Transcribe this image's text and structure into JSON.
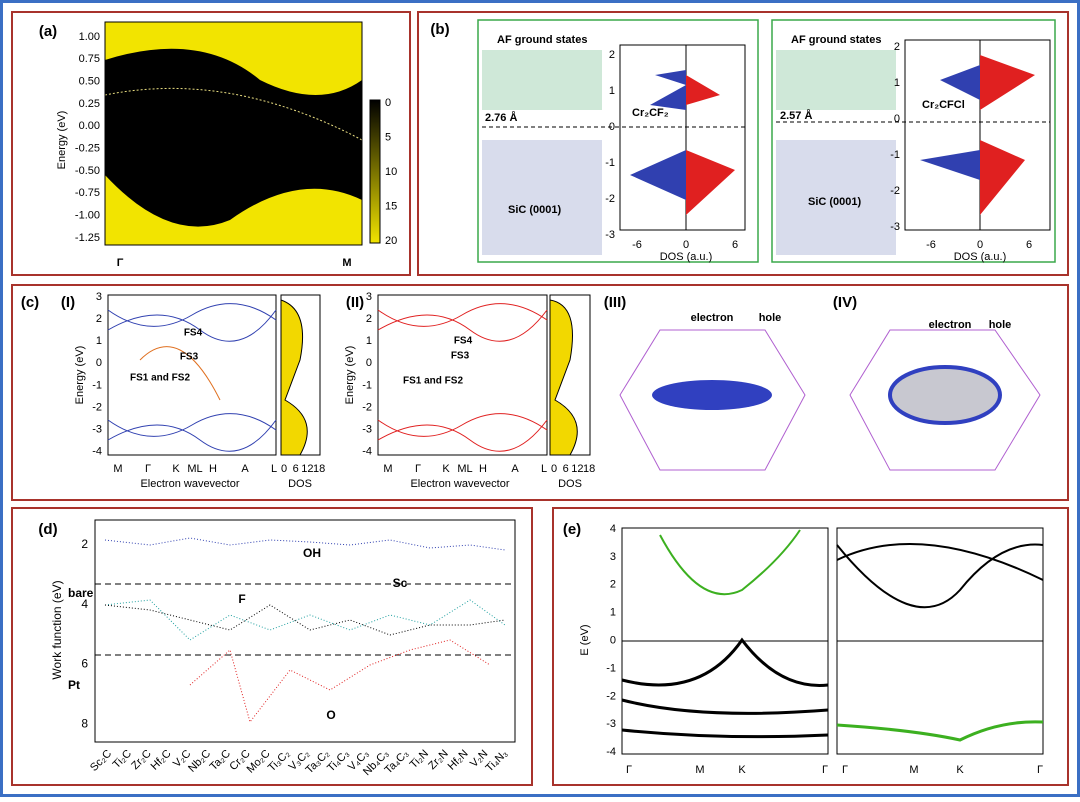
{
  "panels": {
    "a": {
      "label": "(a)",
      "y_axis_label": "Energy (eV)",
      "yticks": [
        "1.00",
        "0.75",
        "0.50",
        "0.25",
        "0.00",
        "-0.25",
        "-0.50",
        "-0.75",
        "-1.00",
        "-1.25"
      ],
      "colorbar_ticks": [
        "0",
        "5",
        "10",
        "15",
        "20"
      ],
      "x_labels": [
        "Γ",
        "M"
      ]
    },
    "b": {
      "label": "(b)",
      "structures": [
        {
          "title": "AF ground states",
          "distance": "2.76 Å",
          "substrate": "SiC (0001)",
          "compound": "Cr₂CF₂",
          "dos_yticks": [
            "2",
            "1",
            "0",
            "-1",
            "-2",
            "-3"
          ],
          "dos_xticks": [
            "-6",
            "0",
            "6"
          ],
          "dos_xlabel": "DOS (a.u.)"
        },
        {
          "title": "AF ground states",
          "distance": "2.57 Å",
          "substrate": "SiC (0001)",
          "compound": "Cr₂CFCl",
          "dos_yticks": [
            "2",
            "1",
            "0",
            "-1",
            "-2",
            "-3"
          ],
          "dos_xticks": [
            "-6",
            "0",
            "6"
          ],
          "dos_xlabel": "DOS (a.u.)"
        }
      ]
    },
    "c": {
      "label": "(c)",
      "subpanels": [
        {
          "label": "(I)",
          "y_axis_label": "Energy (eV)",
          "yticks": [
            "3",
            "2",
            "1",
            "0",
            "-1",
            "-2",
            "-3",
            "-4"
          ],
          "x_labels": [
            "M",
            "Γ",
            "K",
            "ML",
            "H",
            "A",
            "L"
          ],
          "x_axis_label": "Electron wavevector",
          "dos_ticks": [
            "0",
            "6",
            "12",
            "18"
          ],
          "dos_label": "DOS",
          "annotations": [
            "FS4",
            "FS3",
            "FS1 and FS2"
          ]
        },
        {
          "label": "(II)",
          "y_axis_label": "Energy (eV)",
          "yticks": [
            "3",
            "2",
            "1",
            "0",
            "-1",
            "-2",
            "-3",
            "-4"
          ],
          "x_labels": [
            "M",
            "Γ",
            "K",
            "ML",
            "H",
            "A",
            "L"
          ],
          "x_axis_label": "Electron wavevector",
          "dos_ticks": [
            "0",
            "6",
            "12",
            "18"
          ],
          "dos_label": "DOS",
          "annotations": [
            "FS4",
            "FS3",
            "FS1 and FS2"
          ]
        },
        {
          "label": "(III)",
          "annotations": [
            "electron",
            "hole"
          ]
        },
        {
          "label": "(IV)",
          "annotations": [
            "electron",
            "hole"
          ]
        }
      ]
    },
    "d": {
      "label": "(d)",
      "y_axis_label": "Work function (eV)",
      "yticks": [
        "2",
        "4",
        "6",
        "8"
      ],
      "categories": [
        "Sc₂C",
        "Ti₂C",
        "Zr₂C",
        "Hf₂C",
        "V₂C",
        "Nb₂C",
        "Ta₂C",
        "Cr₂C",
        "Mo₂C",
        "Ti₃C₂",
        "V₃C₂",
        "Ta₃C₂",
        "Ti₄C₃",
        "V₄C₃",
        "Nb₄C₃",
        "Ta₄C₃",
        "Ti₂N",
        "Zr₂N",
        "Hf₂N",
        "V₂N",
        "Ti₄N₃"
      ],
      "annotations": [
        "OH",
        "F",
        "bare",
        "Sc",
        "Pt",
        "O"
      ]
    },
    "e": {
      "label": "(e)",
      "y_axis_label": "E (eV)",
      "yticks": [
        "4",
        "3",
        "2",
        "1",
        "0",
        "-1",
        "-2",
        "-3",
        "-4"
      ],
      "x_labels_left": [
        "Γ",
        "M",
        "K",
        "Γ"
      ],
      "x_labels_right": [
        "Γ",
        "M",
        "K",
        "Γ"
      ]
    }
  }
}
